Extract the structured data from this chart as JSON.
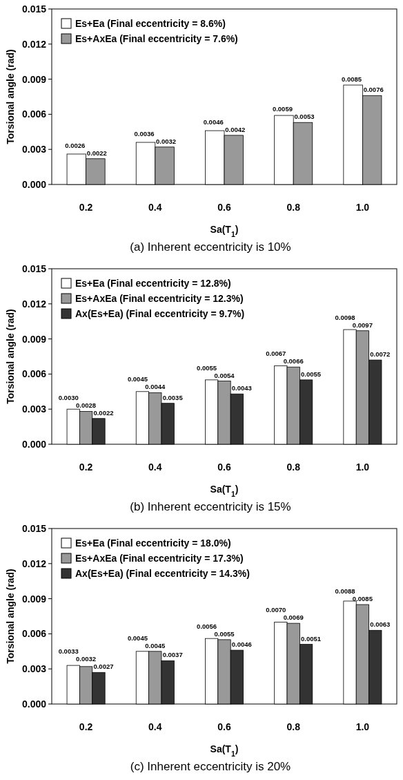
{
  "chart_data": [
    {
      "type": "bar",
      "xlabel": "Sa(T$_{1}$)",
      "ylabel": "Torsional angle (rad)",
      "annotations": [
        "(a) Inherent eccentricity is 10%"
      ],
      "categories": [
        "0.2",
        "0.4",
        "0.6",
        "0.8",
        "1.0"
      ],
      "ylim": [
        0,
        0.015
      ],
      "yticks": [
        {
          "value": 0,
          "label": "0.000"
        },
        {
          "value": 0.003,
          "label": "0.003"
        },
        {
          "value": 0.006,
          "label": "0.006"
        },
        {
          "value": 0.009,
          "label": "0.009"
        },
        {
          "value": 0.012,
          "label": "0.012"
        },
        {
          "value": 0.015,
          "label": "0.015"
        }
      ],
      "grid": false,
      "legend": "top left",
      "series": [
        {
          "name": "Es+Ea (Final eccentricity = 8.6%)",
          "color": "#ffffff",
          "values": [
            0.0026,
            0.0036,
            0.0046,
            0.0059,
            0.0085
          ],
          "value_labels": [
            "0.0026",
            "0.0036",
            "0.0046",
            "0.0059",
            "0.0085"
          ]
        },
        {
          "name": "Es+AxEa (Final eccentricity = 7.6%)",
          "color": "#999999",
          "values": [
            0.0022,
            0.0032,
            0.0042,
            0.0053,
            0.0076
          ],
          "value_labels": [
            "0.0022",
            "0.0032",
            "0.0042",
            "0.0053",
            "0.0076"
          ]
        }
      ]
    },
    {
      "type": "bar",
      "xlabel": "Sa(T$_{1}$)",
      "ylabel": "Torsional angle (rad)",
      "annotations": [
        "(b) Inherent eccentricity is 15%"
      ],
      "categories": [
        "0.2",
        "0.4",
        "0.6",
        "0.8",
        "1.0"
      ],
      "ylim": [
        0,
        0.015
      ],
      "yticks": [
        {
          "value": 0,
          "label": "0.000"
        },
        {
          "value": 0.003,
          "label": "0.003"
        },
        {
          "value": 0.006,
          "label": "0.006"
        },
        {
          "value": 0.009,
          "label": "0.009"
        },
        {
          "value": 0.012,
          "label": "0.012"
        },
        {
          "value": 0.015,
          "label": "0.015"
        }
      ],
      "grid": false,
      "legend": "top left",
      "series": [
        {
          "name": "Es+Ea (Final eccentricity = 12.8%)",
          "color": "#ffffff",
          "values": [
            0.003,
            0.0045,
            0.0055,
            0.0067,
            0.0098
          ],
          "value_labels": [
            "0.0030",
            "0.0045",
            "0.0055",
            "0.0067",
            "0.0098"
          ]
        },
        {
          "name": "Es+AxEa (Final eccentricity = 12.3%)",
          "color": "#999999",
          "values": [
            0.0028,
            0.0044,
            0.0054,
            0.0066,
            0.0097
          ],
          "value_labels": [
            "0.0028",
            "0.0044",
            "0.0054",
            "0.0066",
            "0.0097"
          ]
        },
        {
          "name": "Ax(Es+Ea) (Final eccentricity = 9.7%)",
          "color": "#333333",
          "values": [
            0.0022,
            0.0035,
            0.0043,
            0.0055,
            0.0072
          ],
          "value_labels": [
            "0.0022",
            "0.0035",
            "0.0043",
            "0.0055",
            "0.0072"
          ]
        }
      ]
    },
    {
      "type": "bar",
      "xlabel": "Sa(T$_{1}$)",
      "ylabel": "Torsional angle (rad)",
      "annotations": [
        "(c) Inherent eccentricity is 20%"
      ],
      "categories": [
        "0.2",
        "0.4",
        "0.6",
        "0.8",
        "1.0"
      ],
      "ylim": [
        0,
        0.015
      ],
      "yticks": [
        {
          "value": 0,
          "label": "0.000"
        },
        {
          "value": 0.003,
          "label": "0.003"
        },
        {
          "value": 0.006,
          "label": "0.006"
        },
        {
          "value": 0.009,
          "label": "0.009"
        },
        {
          "value": 0.012,
          "label": "0.012"
        },
        {
          "value": 0.015,
          "label": "0.015"
        }
      ],
      "grid": false,
      "legend": "top left",
      "series": [
        {
          "name": "Es+Ea (Final eccentricity = 18.0%)",
          "color": "#ffffff",
          "values": [
            0.0033,
            0.0045,
            0.0056,
            0.007,
            0.0088
          ],
          "value_labels": [
            "0.0033",
            "0.0045",
            "0.0056",
            "0.0070",
            "0.0088"
          ]
        },
        {
          "name": "Es+AxEa (Final eccentricity = 17.3%)",
          "color": "#999999",
          "values": [
            0.0032,
            0.0045,
            0.0055,
            0.0069,
            0.0085
          ],
          "value_labels": [
            "0.0032",
            "0.0045",
            "0.0055",
            "0.0069",
            "0.0085"
          ]
        },
        {
          "name": "Ax(Es+Ea) (Final eccentricity = 14.3%)",
          "color": "#333333",
          "values": [
            0.0027,
            0.0037,
            0.0046,
            0.0051,
            0.0063
          ],
          "value_labels": [
            "0.0027",
            "0.0037",
            "0.0046",
            "0.0051",
            "0.0063"
          ]
        }
      ]
    }
  ]
}
